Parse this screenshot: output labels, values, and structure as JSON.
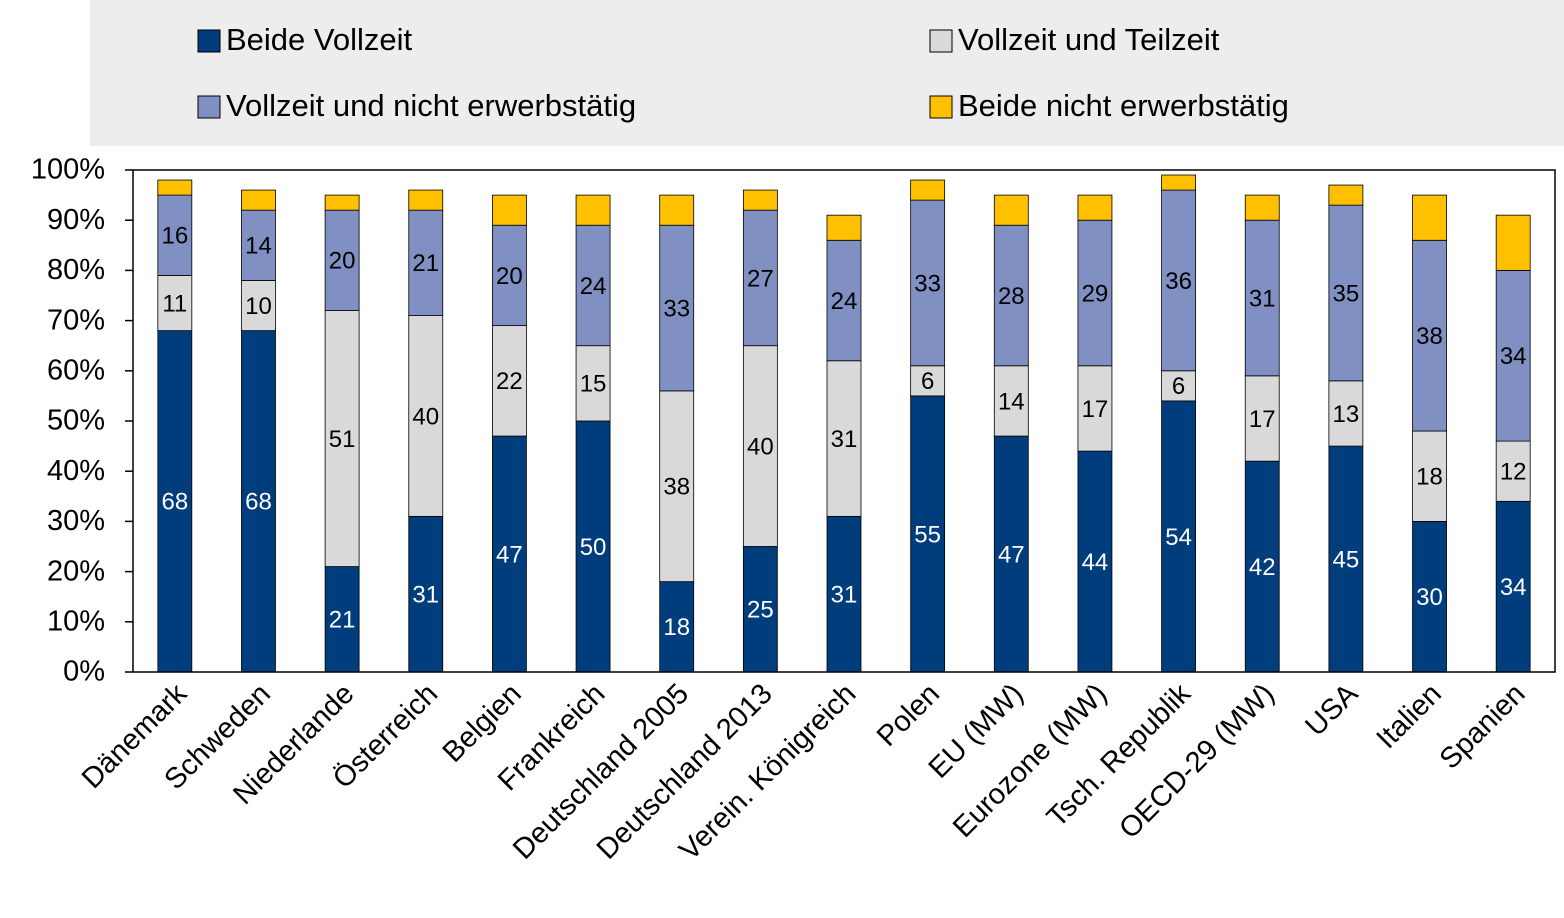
{
  "chart_data": {
    "type": "stacked_bar",
    "categories": [
      "Dänemark",
      "Schweden",
      "Niederlande",
      "Österreich",
      "Belgien",
      "Frankreich",
      "Deutschland 2005",
      "Deutschland 2013",
      "Verein. Königreich",
      "Polen",
      "EU (MW)",
      "Eurozone (MW)",
      "Tsch. Republik",
      "OECD-29 (MW)",
      "USA",
      "Italien",
      "Spanien"
    ],
    "series": [
      {
        "name": "Beide Vollzeit",
        "color": "#003d7c",
        "values": [
          68,
          68,
          21,
          31,
          47,
          50,
          18,
          25,
          31,
          55,
          47,
          44,
          54,
          42,
          45,
          30,
          34
        ]
      },
      {
        "name": "Vollzeit und Teilzeit",
        "color": "#d9d9d9",
        "values": [
          11,
          10,
          51,
          40,
          22,
          15,
          38,
          40,
          31,
          6,
          14,
          17,
          6,
          17,
          13,
          18,
          12
        ]
      },
      {
        "name": "Vollzeit und nicht erwerbstätig",
        "color": "#8090c2",
        "values": [
          16,
          14,
          20,
          21,
          20,
          24,
          33,
          27,
          24,
          33,
          28,
          29,
          36,
          31,
          35,
          38,
          34
        ]
      },
      {
        "name": "Beide nicht erwerbstätig",
        "color": "#ffc000",
        "values": [
          3,
          4,
          3,
          4,
          6,
          6,
          6,
          4,
          5,
          4,
          6,
          5,
          3,
          5,
          4,
          9,
          11
        ]
      }
    ],
    "ylim": [
      0,
      100
    ],
    "yticks": [
      {
        "value": 0,
        "label": "0%"
      },
      {
        "value": 10,
        "label": "10%"
      },
      {
        "value": 20,
        "label": "20%"
      },
      {
        "value": 30,
        "label": "30%"
      },
      {
        "value": 40,
        "label": "40%"
      },
      {
        "value": 50,
        "label": "50%"
      },
      {
        "value": 60,
        "label": "60%"
      },
      {
        "value": 70,
        "label": "70%"
      },
      {
        "value": 80,
        "label": "80%"
      },
      {
        "value": 90,
        "label": "90%"
      },
      {
        "value": 100,
        "label": "100%"
      }
    ],
    "labeled_series": [
      0,
      1,
      2
    ]
  }
}
